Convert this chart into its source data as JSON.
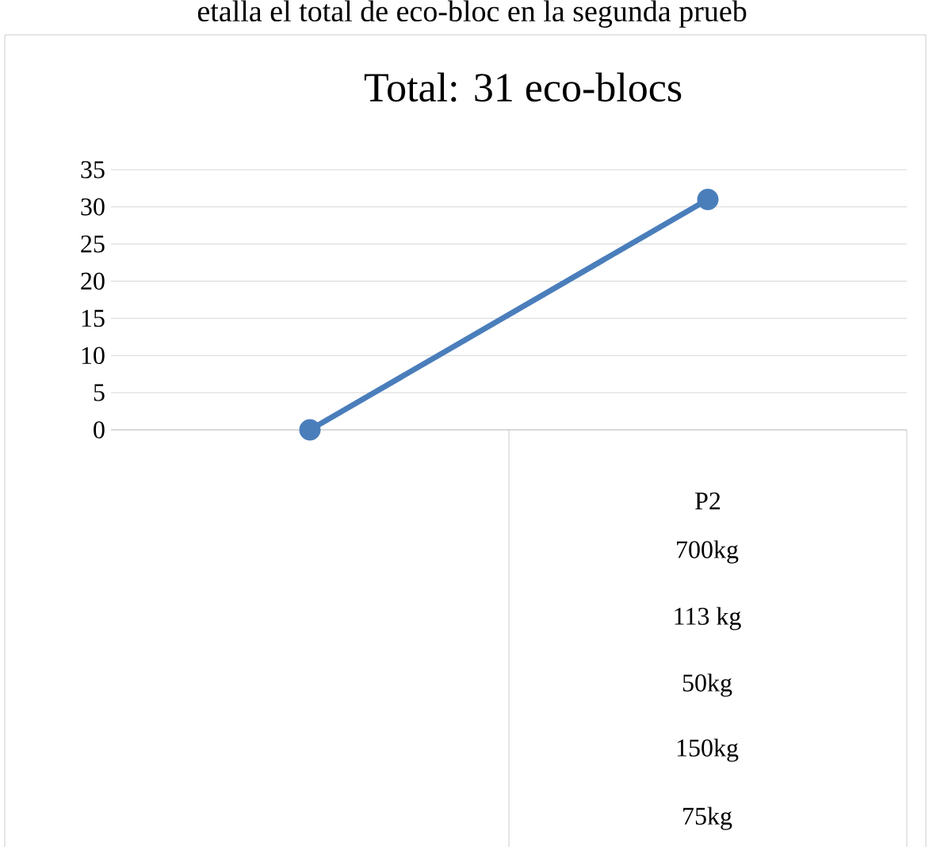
{
  "chart_data": {
    "type": "line",
    "title": "Total: 31 eco-blocs",
    "categories": [
      null,
      "P2"
    ],
    "values": [
      0,
      31
    ],
    "color": "#4a7ebb",
    "ylim": [
      0,
      35
    ],
    "yticks": [
      0,
      5,
      10,
      15,
      20,
      25,
      30,
      35
    ],
    "grid": "y",
    "marker": "circle",
    "annotations": [
      "etalla el total de eco-bloc en la segunda prueb",
      "700kg",
      "113 kg",
      "50kg",
      "150kg",
      "75kg"
    ]
  }
}
